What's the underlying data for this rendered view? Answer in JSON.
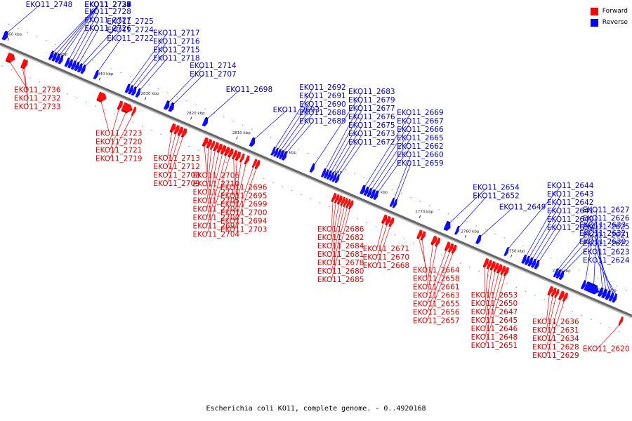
{
  "legend": {
    "forward_label": "Forward",
    "reverse_label": "Reverse",
    "forward_color": "#ff0000",
    "reverse_color": "#0000ff"
  },
  "caption": "Escherichia coli KO11, complete genome. - 0..4920168",
  "scale": {
    "start_kbp": 2861.2,
    "end_kbp": 2723.0,
    "ticks": [
      "2860 kbp",
      "2850 kbp",
      "2840 kbp",
      "2830 kbp",
      "2820 kbp",
      "2810 kbp",
      "2800 kbp",
      "2790 kbp",
      "2780 kbp",
      "2770 kbp",
      "2760 kbp",
      "2750 kbp",
      "2740 kbp",
      "2730 kbp"
    ]
  },
  "genes_forward": [
    {
      "id": "EKO11_2736",
      "start": 2858.8,
      "end": 2857.2
    },
    {
      "id": "EKO11_2732",
      "start": 2855.5,
      "end": 2854.9
    },
    {
      "id": "EKO11_2733",
      "start": 2855.0,
      "end": 2854.5
    },
    {
      "id": "EKO11_2723",
      "start": 2838.9,
      "end": 2837.2
    },
    {
      "id": "EKO11_2720",
      "start": 2834.4,
      "end": 2833.7
    },
    {
      "id": "EKO11_2721",
      "start": 2833.5,
      "end": 2831.5
    },
    {
      "id": "EKO11_2719",
      "start": 2831.3,
      "end": 2830.8
    },
    {
      "id": "EKO11_2713",
      "start": 2822.9,
      "end": 2822.1
    },
    {
      "id": "EKO11_2712",
      "start": 2822.0,
      "end": 2821.3
    },
    {
      "id": "EKO11_2708",
      "start": 2821.2,
      "end": 2820.5
    },
    {
      "id": "EKO11_2709",
      "start": 2820.4,
      "end": 2819.7
    },
    {
      "id": "EKO11_2706",
      "start": 2815.8,
      "end": 2815.0
    },
    {
      "id": "EKO11_2710",
      "start": 2814.9,
      "end": 2814.2
    },
    {
      "id": "EKO11_2711",
      "start": 2814.1,
      "end": 2813.6
    },
    {
      "id": "EKO11_2705",
      "start": 2813.4,
      "end": 2812.7
    },
    {
      "id": "EKO11_2701",
      "start": 2812.6,
      "end": 2811.9
    },
    {
      "id": "EKO11_2702",
      "start": 2811.8,
      "end": 2811.1
    },
    {
      "id": "EKO11_2697",
      "start": 2811.0,
      "end": 2810.3
    },
    {
      "id": "EKO11_2704",
      "start": 2810.2,
      "end": 2809.5
    },
    {
      "id": "EKO11_2696",
      "start": 2809.3,
      "end": 2808.7
    },
    {
      "id": "EKO11_2695",
      "start": 2808.6,
      "end": 2807.9
    },
    {
      "id": "EKO11_2699",
      "start": 2807.6,
      "end": 2807.1
    },
    {
      "id": "EKO11_2700",
      "start": 2806.6,
      "end": 2806.0
    },
    {
      "id": "EKO11_2694",
      "start": 2804.9,
      "end": 2804.4
    },
    {
      "id": "EKO11_2703",
      "start": 2804.3,
      "end": 2803.7
    },
    {
      "id": "EKO11_2686",
      "start": 2787.6,
      "end": 2787.0
    },
    {
      "id": "EKO11_2682",
      "start": 2786.9,
      "end": 2786.4
    },
    {
      "id": "EKO11_2684",
      "start": 2786.3,
      "end": 2785.7
    },
    {
      "id": "EKO11_2681",
      "start": 2785.6,
      "end": 2785.1
    },
    {
      "id": "EKO11_2678",
      "start": 2785.0,
      "end": 2784.5
    },
    {
      "id": "EKO11_2680",
      "start": 2784.4,
      "end": 2783.9
    },
    {
      "id": "EKO11_2685",
      "start": 2783.8,
      "end": 2783.3
    },
    {
      "id": "EKO11_2671",
      "start": 2776.6,
      "end": 2775.9
    },
    {
      "id": "EKO11_2670",
      "start": 2775.8,
      "end": 2775.1
    },
    {
      "id": "EKO11_2668",
      "start": 2775.0,
      "end": 2774.4
    },
    {
      "id": "EKO11_2664",
      "start": 2768.9,
      "end": 2768.2
    },
    {
      "id": "EKO11_2658",
      "start": 2768.1,
      "end": 2767.5
    },
    {
      "id": "EKO11_2661",
      "start": 2765.8,
      "end": 2765.0
    },
    {
      "id": "EKO11_2663",
      "start": 2764.9,
      "end": 2764.3
    },
    {
      "id": "EKO11_2655",
      "start": 2762.8,
      "end": 2762.1
    },
    {
      "id": "EKO11_2656",
      "start": 2762.0,
      "end": 2761.4
    },
    {
      "id": "EKO11_2657",
      "start": 2761.3,
      "end": 2760.7
    },
    {
      "id": "EKO11_2653",
      "start": 2754.4,
      "end": 2753.7
    },
    {
      "id": "EKO11_2650",
      "start": 2753.6,
      "end": 2753.0
    },
    {
      "id": "EKO11_2647",
      "start": 2752.9,
      "end": 2752.2
    },
    {
      "id": "EKO11_2645",
      "start": 2752.1,
      "end": 2751.5
    },
    {
      "id": "EKO11_2646",
      "start": 2751.4,
      "end": 2750.7
    },
    {
      "id": "EKO11_2648",
      "start": 2750.6,
      "end": 2750.0
    },
    {
      "id": "EKO11_2651",
      "start": 2749.9,
      "end": 2749.3
    },
    {
      "id": "EKO11_2636",
      "start": 2740.3,
      "end": 2739.6
    },
    {
      "id": "EKO11_2631",
      "start": 2739.5,
      "end": 2738.9
    },
    {
      "id": "EKO11_2634",
      "start": 2738.8,
      "end": 2738.3
    },
    {
      "id": "EKO11_2628",
      "start": 2737.9,
      "end": 2737.1
    },
    {
      "id": "EKO11_2629",
      "start": 2737.0,
      "end": 2736.4
    },
    {
      "id": "EKO11_2620",
      "start": 2724.8,
      "end": 2724.3
    }
  ],
  "genes_reverse": [
    {
      "id": "EKO11_2748",
      "start": 2861.2,
      "end": 2860.3
    },
    {
      "id": "EKO11_2738",
      "start": 2851.0,
      "end": 2850.4
    },
    {
      "id": "EKO11_2737",
      "start": 2850.3,
      "end": 2849.7
    },
    {
      "id": "EKO11_2735",
      "start": 2849.6,
      "end": 2849.0
    },
    {
      "id": "EKO11_2734",
      "start": 2848.9,
      "end": 2848.3
    },
    {
      "id": "EKO11_2729",
      "start": 2847.5,
      "end": 2846.9
    },
    {
      "id": "EKO11_2728",
      "start": 2846.8,
      "end": 2846.2
    },
    {
      "id": "EKO11_2727",
      "start": 2846.1,
      "end": 2845.5
    },
    {
      "id": "EKO11_2726",
      "start": 2845.4,
      "end": 2844.8
    },
    {
      "id": "EKO11_2725",
      "start": 2844.7,
      "end": 2844.1
    },
    {
      "id": "EKO11_2724",
      "start": 2844.0,
      "end": 2843.4
    },
    {
      "id": "EKO11_2722",
      "start": 2841.2,
      "end": 2840.6
    },
    {
      "id": "EKO11_2717",
      "start": 2834.3,
      "end": 2833.7
    },
    {
      "id": "EKO11_2716",
      "start": 2833.6,
      "end": 2833.0
    },
    {
      "id": "EKO11_2715",
      "start": 2832.9,
      "end": 2832.3
    },
    {
      "id": "EKO11_2718",
      "start": 2832.0,
      "end": 2831.4
    },
    {
      "id": "EKO11_2714",
      "start": 2825.8,
      "end": 2825.0
    },
    {
      "id": "EKO11_2707",
      "start": 2824.8,
      "end": 2824.0
    },
    {
      "id": "EKO11_2698",
      "start": 2817.4,
      "end": 2816.6
    },
    {
      "id": "EKO11_2693",
      "start": 2807.1,
      "end": 2806.3
    },
    {
      "id": "EKO11_2692",
      "start": 2802.4,
      "end": 2801.9
    },
    {
      "id": "EKO11_2691",
      "start": 2801.8,
      "end": 2801.3
    },
    {
      "id": "EKO11_2690",
      "start": 2801.2,
      "end": 2800.7
    },
    {
      "id": "EKO11_2688",
      "start": 2800.6,
      "end": 2800.1
    },
    {
      "id": "EKO11_2689",
      "start": 2800.0,
      "end": 2799.4
    },
    {
      "id": "EKO11_2683",
      "start": 2793.9,
      "end": 2793.3
    },
    {
      "id": "EKO11_2679",
      "start": 2791.4,
      "end": 2790.9
    },
    {
      "id": "EKO11_2677",
      "start": 2790.8,
      "end": 2790.3
    },
    {
      "id": "EKO11_2676",
      "start": 2790.2,
      "end": 2789.7
    },
    {
      "id": "EKO11_2675",
      "start": 2789.6,
      "end": 2789.1
    },
    {
      "id": "EKO11_2673",
      "start": 2789.0,
      "end": 2788.5
    },
    {
      "id": "EKO11_2672",
      "start": 2788.4,
      "end": 2787.9
    },
    {
      "id": "EKO11_2669",
      "start": 2782.9,
      "end": 2782.2
    },
    {
      "id": "EKO11_2667",
      "start": 2782.1,
      "end": 2781.5
    },
    {
      "id": "EKO11_2666",
      "start": 2781.4,
      "end": 2780.8
    },
    {
      "id": "EKO11_2665",
      "start": 2780.7,
      "end": 2780.1
    },
    {
      "id": "EKO11_2662",
      "start": 2780.0,
      "end": 2779.4
    },
    {
      "id": "EKO11_2660",
      "start": 2776.4,
      "end": 2775.9
    },
    {
      "id": "EKO11_2659",
      "start": 2775.8,
      "end": 2775.3
    },
    {
      "id": "EKO11_2654",
      "start": 2764.6,
      "end": 2763.5
    },
    {
      "id": "EKO11_2652",
      "start": 2762.2,
      "end": 2761.7
    },
    {
      "id": "EKO11_2649",
      "start": 2757.6,
      "end": 2756.9
    },
    {
      "id": "EKO11_2644",
      "start": 2751.4,
      "end": 2750.9
    },
    {
      "id": "EKO11_2643",
      "start": 2747.6,
      "end": 2747.0
    },
    {
      "id": "EKO11_2642",
      "start": 2746.9,
      "end": 2746.3
    },
    {
      "id": "EKO11_2641",
      "start": 2746.2,
      "end": 2745.6
    },
    {
      "id": "EKO11_2640",
      "start": 2745.5,
      "end": 2744.9
    },
    {
      "id": "EKO11_2639",
      "start": 2744.8,
      "end": 2744.2
    },
    {
      "id": "EKO11_2633",
      "start": 2740.6,
      "end": 2740.1
    },
    {
      "id": "EKO11_2632",
      "start": 2740.0,
      "end": 2739.5
    },
    {
      "id": "EKO11_2630",
      "start": 2739.4,
      "end": 2738.8
    },
    {
      "id": "EKO11_2627",
      "start": 2734.6,
      "end": 2734.0
    },
    {
      "id": "EKO11_2626",
      "start": 2733.9,
      "end": 2731.0
    },
    {
      "id": "EKO11_2625",
      "start": 2730.9,
      "end": 2730.2
    },
    {
      "id": "EKO11_2621",
      "start": 2730.1,
      "end": 2729.4
    },
    {
      "id": "EKO11_2622",
      "start": 2729.3,
      "end": 2728.6
    },
    {
      "id": "EKO11_2623",
      "start": 2728.5,
      "end": 2727.9
    },
    {
      "id": "EKO11_2624",
      "start": 2727.8,
      "end": 2727.2
    }
  ]
}
